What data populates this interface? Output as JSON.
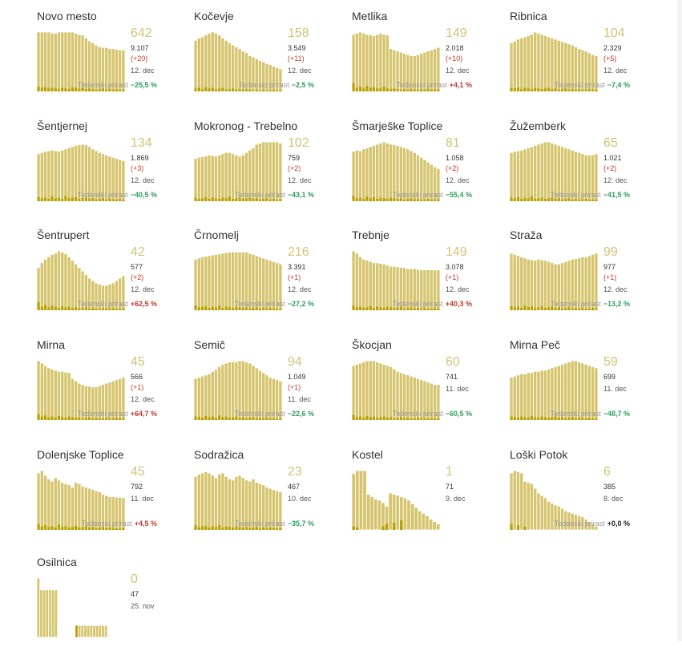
{
  "colors": {
    "bar": "#d6c56e",
    "bar_stroke": "#ffffff",
    "accent_bar": "#b8a100",
    "number": "#d3c278",
    "down": "#2e9e5a",
    "up": "#c0392b"
  },
  "growth_label": "Tedenski prirast",
  "chart_data": [
    {
      "type": "bar",
      "title": "Novo mesto",
      "value": "642",
      "total": "9.107",
      "delta": "(+20)",
      "date": "12. dec",
      "growth": "−25,5 %",
      "trend": "down",
      "values": [
        100,
        100,
        100,
        100,
        98,
        98,
        100,
        100,
        100,
        100,
        100,
        98,
        96,
        95,
        90,
        85,
        82,
        78,
        75,
        74,
        74,
        72,
        72,
        71,
        70,
        70
      ],
      "accent": [
        8,
        6,
        7,
        5,
        6,
        5,
        4,
        6,
        5,
        4,
        7,
        6,
        5,
        6,
        4,
        5,
        4,
        3,
        4,
        5,
        3,
        4,
        3,
        4,
        3,
        3
      ]
    },
    {
      "type": "bar",
      "title": "Kočevje",
      "value": "158",
      "total": "3.549",
      "delta": "(+11)",
      "date": "12. dec",
      "growth": "−2,5 %",
      "trend": "down",
      "values": [
        86,
        90,
        92,
        95,
        98,
        100,
        98,
        95,
        90,
        86,
        82,
        78,
        75,
        72,
        68,
        65,
        60,
        58,
        55,
        52,
        50,
        47,
        45,
        42,
        40,
        38
      ],
      "accent": [
        5,
        6,
        4,
        7,
        5,
        6,
        4,
        5,
        6,
        3,
        4,
        5,
        3,
        4,
        3,
        4,
        3,
        2,
        3,
        2,
        3,
        2,
        2,
        3,
        2,
        2
      ]
    },
    {
      "type": "bar",
      "title": "Metlika",
      "value": "149",
      "total": "2.018",
      "delta": "(+10)",
      "date": "12. dec",
      "growth": "+4,1 %",
      "trend": "up",
      "values": [
        96,
        98,
        100,
        98,
        96,
        95,
        94,
        96,
        98,
        96,
        95,
        72,
        70,
        68,
        66,
        64,
        62,
        60,
        60,
        62,
        64,
        66,
        68,
        70,
        72,
        74
      ],
      "accent": [
        14,
        6,
        8,
        5,
        9,
        6,
        7,
        5,
        6,
        8,
        5,
        4,
        5,
        4,
        3,
        4,
        3,
        4,
        3,
        3,
        4,
        3,
        4,
        3,
        4,
        3
      ]
    },
    {
      "type": "bar",
      "title": "Ribnica",
      "value": "104",
      "total": "2.329",
      "delta": "(+5)",
      "date": "12. dec",
      "growth": "−7,4 %",
      "trend": "down",
      "values": [
        82,
        85,
        88,
        90,
        92,
        94,
        96,
        100,
        98,
        96,
        94,
        92,
        90,
        88,
        86,
        84,
        82,
        80,
        78,
        75,
        72,
        70,
        68,
        65,
        62,
        60
      ],
      "accent": [
        6,
        5,
        7,
        4,
        6,
        5,
        4,
        6,
        5,
        4,
        5,
        6,
        4,
        5,
        3,
        4,
        5,
        3,
        4,
        3,
        4,
        3,
        3,
        4,
        3,
        3
      ]
    },
    {
      "type": "bar",
      "title": "Šentjernej",
      "value": "134",
      "total": "1.869",
      "delta": "(+3)",
      "date": "12. dec",
      "growth": "−40,5 %",
      "trend": "down",
      "values": [
        80,
        82,
        84,
        85,
        86,
        85,
        84,
        86,
        88,
        90,
        92,
        94,
        95,
        96,
        95,
        92,
        88,
        85,
        82,
        80,
        78,
        76,
        74,
        72,
        70,
        68
      ],
      "accent": [
        7,
        5,
        6,
        4,
        8,
        5,
        6,
        4,
        9,
        5,
        6,
        7,
        4,
        5,
        6,
        4,
        5,
        3,
        4,
        5,
        3,
        4,
        3,
        3,
        4,
        3
      ]
    },
    {
      "type": "bar",
      "title": "Mokronog - Trebelno",
      "value": "102",
      "total": "759",
      "delta": "(+2)",
      "date": "12. dec",
      "growth": "−43,1 %",
      "trend": "down",
      "values": [
        72,
        74,
        75,
        76,
        78,
        77,
        76,
        78,
        80,
        82,
        82,
        80,
        78,
        76,
        78,
        82,
        86,
        90,
        96,
        98,
        100,
        100,
        100,
        100,
        100,
        98
      ],
      "accent": [
        6,
        4,
        5,
        7,
        4,
        6,
        5,
        4,
        6,
        5,
        8,
        4,
        5,
        6,
        4,
        5,
        6,
        4,
        5,
        3,
        4,
        5,
        3,
        4,
        3,
        3
      ]
    },
    {
      "type": "bar",
      "title": "Šmarješke Toplice",
      "value": "81",
      "total": "1.058",
      "delta": "(+2)",
      "date": "12. dec",
      "growth": "−55,4 %",
      "trend": "down",
      "values": [
        84,
        86,
        85,
        88,
        90,
        92,
        94,
        96,
        98,
        100,
        98,
        96,
        95,
        94,
        92,
        90,
        88,
        85,
        82,
        78,
        74,
        70,
        66,
        62,
        58,
        55
      ],
      "accent": [
        9,
        5,
        6,
        4,
        8,
        5,
        7,
        4,
        6,
        5,
        4,
        6,
        5,
        4,
        5,
        3,
        4,
        5,
        3,
        4,
        3,
        3,
        4,
        3,
        3,
        3
      ]
    },
    {
      "type": "bar",
      "title": "Žužemberk",
      "value": "65",
      "total": "1.021",
      "delta": "(+2)",
      "date": "12. dec",
      "growth": "−41,5 %",
      "trend": "down",
      "values": [
        82,
        84,
        85,
        86,
        88,
        90,
        92,
        94,
        96,
        98,
        100,
        100,
        98,
        96,
        94,
        92,
        90,
        88,
        86,
        84,
        82,
        80,
        78,
        78,
        78,
        80
      ],
      "accent": [
        6,
        5,
        7,
        4,
        6,
        5,
        8,
        4,
        5,
        6,
        4,
        5,
        6,
        4,
        5,
        3,
        4,
        5,
        3,
        4,
        3,
        3,
        4,
        3,
        3,
        3
      ]
    },
    {
      "type": "bar",
      "title": "Šentrupert",
      "value": "42",
      "total": "577",
      "delta": "(+2)",
      "date": "12. dec",
      "growth": "+62,5 %",
      "trend": "up",
      "values": [
        72,
        80,
        86,
        90,
        94,
        96,
        100,
        98,
        95,
        90,
        84,
        78,
        72,
        66,
        60,
        54,
        50,
        46,
        44,
        42,
        42,
        44,
        46,
        50,
        54,
        58
      ],
      "accent": [
        14,
        6,
        9,
        5,
        8,
        6,
        4,
        7,
        5,
        6,
        4,
        5,
        3,
        4,
        5,
        3,
        4,
        3,
        3,
        4,
        3,
        3,
        4,
        3,
        3,
        3
      ]
    },
    {
      "type": "bar",
      "title": "Črnomelj",
      "value": "216",
      "total": "3.391",
      "delta": "(+1)",
      "date": "12. dec",
      "growth": "−27,2 %",
      "trend": "down",
      "values": [
        86,
        88,
        90,
        91,
        92,
        93,
        94,
        95,
        96,
        97,
        98,
        98,
        98,
        98,
        98,
        98,
        96,
        94,
        92,
        90,
        88,
        86,
        84,
        82,
        80,
        78
      ],
      "accent": [
        8,
        5,
        6,
        7,
        4,
        6,
        5,
        8,
        4,
        6,
        5,
        4,
        6,
        5,
        4,
        5,
        3,
        4,
        5,
        3,
        4,
        3,
        4,
        3,
        3,
        3
      ]
    },
    {
      "type": "bar",
      "title": "Trebnje",
      "value": "149",
      "total": "3.078",
      "delta": "(+1)",
      "date": "12. dec",
      "growth": "+40,3 %",
      "trend": "up",
      "values": [
        100,
        96,
        90,
        86,
        84,
        82,
        80,
        80,
        79,
        78,
        76,
        74,
        74,
        73,
        72,
        72,
        70,
        70,
        70,
        69,
        68,
        68,
        68,
        68,
        68,
        68
      ],
      "accent": [
        8,
        5,
        6,
        4,
        5,
        7,
        4,
        6,
        5,
        4,
        6,
        5,
        4,
        5,
        6,
        3,
        4,
        5,
        3,
        4,
        3,
        4,
        3,
        3,
        4,
        3
      ]
    },
    {
      "type": "bar",
      "title": "Straža",
      "value": "99",
      "total": "977",
      "delta": "(+1)",
      "date": "12. dec",
      "growth": "−13,2 %",
      "trend": "down",
      "values": [
        96,
        94,
        92,
        90,
        88,
        86,
        85,
        84,
        86,
        85,
        84,
        82,
        80,
        78,
        78,
        80,
        82,
        84,
        86,
        87,
        88,
        90,
        90,
        92,
        94,
        96
      ],
      "accent": [
        7,
        5,
        6,
        4,
        8,
        5,
        6,
        4,
        5,
        7,
        4,
        5,
        6,
        4,
        5,
        3,
        4,
        5,
        3,
        4,
        3,
        4,
        3,
        3,
        4,
        3
      ]
    },
    {
      "type": "bar",
      "title": "Mirna",
      "value": "45",
      "total": "566",
      "delta": "(+1)",
      "date": "12. dec",
      "growth": "+64,7 %",
      "trend": "up",
      "values": [
        100,
        96,
        92,
        88,
        86,
        84,
        82,
        82,
        81,
        80,
        70,
        66,
        62,
        60,
        58,
        57,
        56,
        56,
        58,
        60,
        62,
        64,
        66,
        68,
        70,
        72
      ],
      "accent": [
        10,
        6,
        8,
        5,
        6,
        4,
        7,
        5,
        4,
        6,
        5,
        4,
        5,
        3,
        4,
        5,
        3,
        4,
        3,
        3,
        4,
        3,
        3,
        4,
        3,
        3
      ]
    },
    {
      "type": "bar",
      "title": "Semič",
      "value": "94",
      "total": "1.049",
      "delta": "(+1)",
      "date": "11. dec",
      "growth": "−22,6 %",
      "trend": "down",
      "values": [
        70,
        72,
        74,
        76,
        78,
        82,
        86,
        90,
        94,
        96,
        98,
        98,
        98,
        100,
        100,
        98,
        96,
        92,
        88,
        84,
        80,
        76,
        72,
        70,
        68,
        66
      ],
      "accent": [
        6,
        5,
        4,
        7,
        5,
        6,
        4,
        8,
        5,
        6,
        4,
        5,
        6,
        4,
        5,
        3,
        4,
        5,
        3,
        4,
        3,
        4,
        3,
        3,
        3,
        3
      ]
    },
    {
      "type": "bar",
      "title": "Škocjan",
      "value": "60",
      "total": "741",
      "delta": "",
      "date": "11. dec",
      "growth": "−60,5 %",
      "trend": "down",
      "values": [
        92,
        94,
        96,
        98,
        100,
        100,
        100,
        98,
        96,
        94,
        92,
        90,
        86,
        82,
        80,
        78,
        76,
        74,
        72,
        70,
        68,
        66,
        64,
        62,
        60,
        60
      ],
      "accent": [
        9,
        5,
        6,
        4,
        7,
        5,
        6,
        4,
        5,
        6,
        4,
        5,
        3,
        4,
        5,
        3,
        4,
        3,
        3,
        4,
        3,
        3,
        3,
        3,
        3,
        3
      ]
    },
    {
      "type": "bar",
      "title": "Mirna Peč",
      "value": "59",
      "total": "699",
      "delta": "",
      "date": "11. dec",
      "growth": "−48,7 %",
      "trend": "down",
      "values": [
        72,
        74,
        76,
        78,
        78,
        80,
        80,
        82,
        82,
        84,
        84,
        86,
        88,
        90,
        92,
        94,
        96,
        98,
        100,
        100,
        98,
        96,
        94,
        92,
        90,
        88
      ],
      "accent": [
        6,
        5,
        4,
        6,
        5,
        4,
        7,
        5,
        4,
        6,
        5,
        4,
        5,
        6,
        4,
        5,
        3,
        4,
        5,
        3,
        4,
        3,
        3,
        4,
        3,
        3
      ]
    },
    {
      "type": "bar",
      "title": "Dolenjske Toplice",
      "value": "45",
      "total": "792",
      "delta": "",
      "date": "11. dec",
      "growth": "+4,5 %",
      "trend": "up",
      "values": [
        96,
        100,
        92,
        86,
        82,
        88,
        84,
        80,
        78,
        76,
        72,
        80,
        78,
        74,
        72,
        70,
        68,
        66,
        64,
        60,
        58,
        56,
        56,
        55,
        55,
        54
      ],
      "accent": [
        10,
        6,
        8,
        5,
        6,
        4,
        9,
        5,
        6,
        4,
        5,
        7,
        4,
        5,
        6,
        4,
        5,
        3,
        4,
        5,
        3,
        4,
        3,
        3,
        3,
        3
      ]
    },
    {
      "type": "bar",
      "title": "Sodražica",
      "value": "23",
      "total": "467",
      "delta": "",
      "date": "10. dec",
      "growth": "−35,7 %",
      "trend": "down",
      "values": [
        90,
        94,
        96,
        98,
        96,
        92,
        88,
        94,
        96,
        90,
        86,
        84,
        90,
        92,
        88,
        84,
        82,
        86,
        80,
        78,
        76,
        72,
        70,
        68,
        66,
        64
      ],
      "accent": [
        8,
        5,
        6,
        7,
        4,
        6,
        5,
        8,
        4,
        6,
        5,
        4,
        6,
        5,
        4,
        5,
        3,
        4,
        5,
        3,
        4,
        3,
        4,
        3,
        3,
        3
      ]
    },
    {
      "type": "bar",
      "title": "Kostel",
      "value": "1",
      "total": "71",
      "delta": "",
      "date": "9. dec",
      "growth": "",
      "trend": "none",
      "values": [
        95,
        100,
        100,
        100,
        60,
        56,
        52,
        50,
        46,
        40,
        62,
        60,
        58,
        56,
        54,
        50,
        44,
        38,
        32,
        28,
        24,
        18,
        14,
        10
      ],
      "accent": [
        6,
        4,
        0,
        0,
        0,
        0,
        0,
        0,
        6,
        10,
        0,
        12,
        0,
        16,
        0,
        0,
        0,
        0,
        0,
        0,
        0,
        0,
        0,
        0
      ]
    },
    {
      "type": "bar",
      "title": "Loški Potok",
      "value": "6",
      "total": "385",
      "delta": "",
      "date": "8. dec",
      "growth": "+0,0 %",
      "trend": "zero",
      "values": [
        96,
        100,
        98,
        96,
        82,
        80,
        78,
        70,
        62,
        58,
        54,
        48,
        45,
        42,
        40,
        36,
        32,
        30,
        28,
        26,
        24,
        22,
        18,
        14,
        10,
        6
      ],
      "accent": [
        10,
        0,
        8,
        0,
        6,
        0,
        0,
        0,
        0,
        0,
        0,
        0,
        0,
        0,
        0,
        0,
        0,
        0,
        0,
        0,
        0,
        0,
        0,
        0,
        0,
        0
      ]
    },
    {
      "type": "bar",
      "title": "Osilnica",
      "value": "0",
      "total": "47",
      "delta": "",
      "date": "25. nov",
      "growth": "",
      "trend": "none",
      "values": [
        100,
        80,
        80,
        80,
        80,
        80,
        80,
        0,
        0,
        0,
        0,
        0,
        0,
        20,
        20,
        20,
        20,
        20,
        20,
        20,
        20,
        20,
        20,
        20,
        0,
        0,
        0,
        0,
        0,
        0
      ],
      "accent": [
        0,
        0,
        0,
        0,
        0,
        0,
        0,
        0,
        0,
        0,
        0,
        0,
        0,
        20,
        0,
        0,
        0,
        0,
        0,
        0,
        0,
        0,
        0,
        0,
        0,
        0,
        0,
        0,
        0,
        0
      ]
    }
  ]
}
